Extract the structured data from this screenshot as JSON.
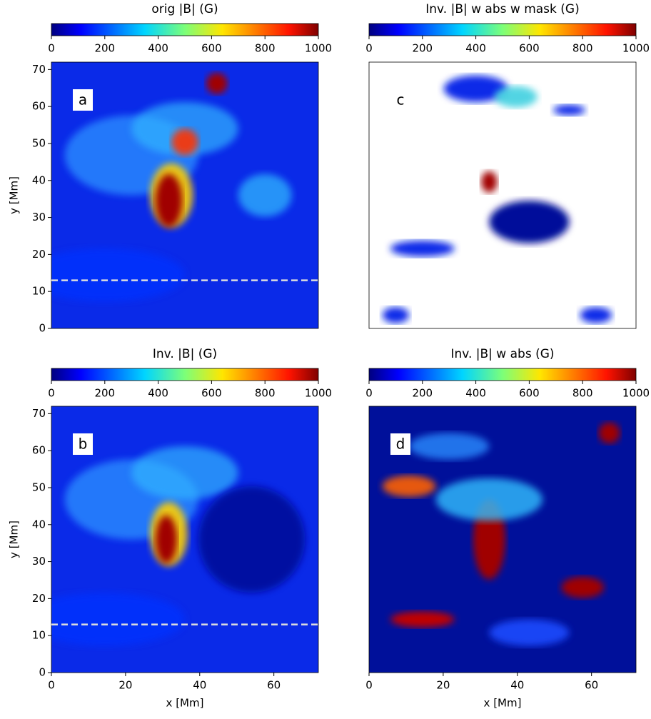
{
  "chart_data": [
    {
      "type": "heatmap",
      "title": "orig |B| (G)",
      "panel_label": "a",
      "xlim": [
        0,
        72
      ],
      "ylim": [
        0,
        72
      ],
      "yticks": [
        0,
        10,
        20,
        30,
        40,
        50,
        60,
        70
      ],
      "ylabel": "y [Mm]",
      "colorbar": {
        "lim": [
          0,
          1000
        ],
        "ticks": [
          0,
          200,
          400,
          600,
          800,
          1000
        ],
        "colormap": "jet"
      },
      "hline": 13
    },
    {
      "type": "heatmap",
      "title": "Inv. |B| w abs w mask (G)",
      "panel_label": "c",
      "xlim": [
        0,
        72
      ],
      "ylim": [
        0,
        72
      ],
      "colorbar": {
        "lim": [
          0,
          1000
        ],
        "ticks": [
          0,
          200,
          400,
          600,
          800,
          1000
        ],
        "colormap": "jet"
      }
    },
    {
      "type": "heatmap",
      "title": "Inv. |B| (G)",
      "panel_label": "b",
      "xlim": [
        0,
        72
      ],
      "ylim": [
        0,
        72
      ],
      "xticks": [
        0,
        20,
        40,
        60
      ],
      "yticks": [
        0,
        10,
        20,
        30,
        40,
        50,
        60,
        70
      ],
      "xlabel": "x [Mm]",
      "ylabel": "y [Mm]",
      "colorbar": {
        "lim": [
          0,
          1000
        ],
        "ticks": [
          0,
          200,
          400,
          600,
          800,
          1000
        ],
        "colormap": "jet"
      },
      "hline": 13
    },
    {
      "type": "heatmap",
      "title": "Inv. |B| w abs (G)",
      "panel_label": "d",
      "xlim": [
        0,
        72
      ],
      "ylim": [
        0,
        72
      ],
      "xticks": [
        0,
        20,
        40,
        60
      ],
      "xlabel": "x [Mm]",
      "colorbar": {
        "lim": [
          0,
          1000
        ],
        "ticks": [
          0,
          200,
          400,
          600,
          800,
          1000
        ],
        "colormap": "jet"
      }
    }
  ]
}
